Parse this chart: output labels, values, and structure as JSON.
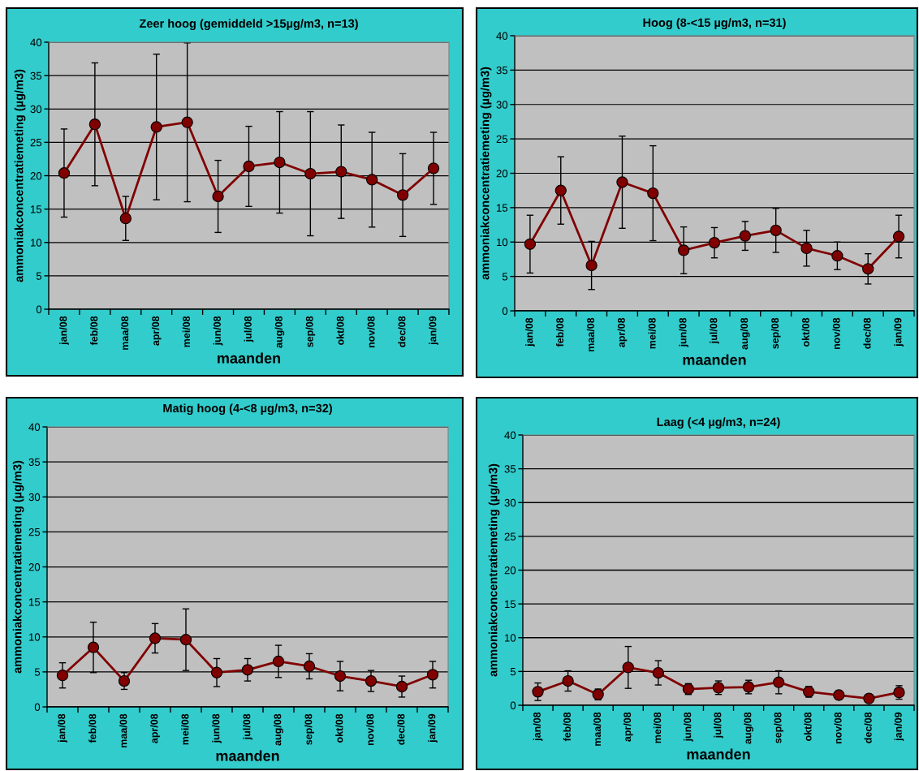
{
  "chart_data": [
    {
      "type": "line",
      "title": "Zeer hoog (gemiddeld >15µg/m3, n=13)",
      "xlabel": "maanden",
      "ylabel": "ammoniakconcentratiemeting (µg/m3)",
      "categories": [
        "jan/08",
        "feb/08",
        "maa/08",
        "apr/08",
        "mei/08",
        "jun/08",
        "jul/08",
        "aug/08",
        "sep/08",
        "okt/08",
        "nov/08",
        "dec/08",
        "jan/09"
      ],
      "series": [
        {
          "color": "#800000",
          "values": [
            20.4,
            27.7,
            13.6,
            27.3,
            28.0,
            16.9,
            21.4,
            22.0,
            20.3,
            20.6,
            19.4,
            17.1,
            21.1
          ],
          "errors": [
            6.6,
            9.2,
            3.3,
            10.9,
            11.9,
            5.4,
            6.0,
            7.6,
            9.3,
            7.0,
            7.1,
            6.2,
            5.4
          ]
        }
      ],
      "ylim": [
        0,
        40
      ],
      "yticks": [
        0,
        5,
        10,
        15,
        20,
        25,
        30,
        35,
        40
      ],
      "grid": "y",
      "marker": "circle",
      "line_style": "solid"
    },
    {
      "type": "line",
      "title": "Hoog (8-<15 µg/m3, n=31)",
      "xlabel": "maanden",
      "ylabel": "ammoniakconcentratiemeting (µg/m3)",
      "categories": [
        "jan/08",
        "feb/08",
        "maa/08",
        "apr/08",
        "mei/08",
        "jun/08",
        "jul/08",
        "aug/08",
        "sep/08",
        "okt/08",
        "nov/08",
        "dec/08",
        "jan/09"
      ],
      "series": [
        {
          "color": "#800000",
          "values": [
            9.7,
            17.5,
            6.6,
            18.7,
            17.1,
            8.8,
            9.9,
            10.9,
            11.7,
            9.1,
            8.0,
            6.1,
            10.8
          ],
          "errors": [
            4.2,
            4.9,
            3.5,
            6.7,
            6.9,
            3.4,
            2.2,
            2.1,
            3.2,
            2.6,
            2.0,
            2.2,
            3.1
          ]
        }
      ],
      "ylim": [
        0,
        40
      ],
      "yticks": [
        0,
        5,
        10,
        15,
        20,
        25,
        30,
        35,
        40
      ],
      "grid": "y",
      "marker": "circle",
      "line_style": "solid"
    },
    {
      "type": "line",
      "title": "Matig hoog (4-<8 µg/m3, n=32)",
      "xlabel": "maanden",
      "ylabel": "ammoniakconcentratiemeting (µg/m3)",
      "categories": [
        "jan/08",
        "feb/08",
        "maa/08",
        "apr/08",
        "mei/08",
        "jun/08",
        "jul/08",
        "aug/08",
        "sep/08",
        "okt/08",
        "nov/08",
        "dec/08",
        "jan/09"
      ],
      "series": [
        {
          "color": "#800000",
          "values": [
            4.5,
            8.5,
            3.7,
            9.8,
            9.6,
            4.9,
            5.3,
            6.5,
            5.8,
            4.4,
            3.7,
            2.9,
            4.6
          ],
          "errors": [
            1.8,
            3.6,
            1.2,
            2.1,
            4.4,
            2.0,
            1.6,
            2.3,
            1.8,
            2.1,
            1.5,
            1.5,
            1.9
          ]
        }
      ],
      "ylim": [
        0,
        40
      ],
      "yticks": [
        0,
        5,
        10,
        15,
        20,
        25,
        30,
        35,
        40
      ],
      "grid": "y",
      "marker": "circle",
      "line_style": "solid"
    },
    {
      "type": "line",
      "title": "Laag (<4 µg/m3, n=24)",
      "xlabel": "maanden",
      "ylabel": "ammoniakconcentratiemeting (µg/m3)",
      "categories": [
        "jan/08",
        "feb/08",
        "maa/08",
        "apr/08",
        "mei/08",
        "jun/08",
        "jul/08",
        "aug/08",
        "sep/08",
        "okt/08",
        "nov/08",
        "dec/08",
        "jan/09"
      ],
      "series": [
        {
          "color": "#800000",
          "values": [
            2.0,
            3.6,
            1.6,
            5.6,
            4.8,
            2.4,
            2.6,
            2.7,
            3.4,
            2.0,
            1.5,
            1.0,
            1.9
          ],
          "errors": [
            1.3,
            1.5,
            0.8,
            3.1,
            1.8,
            0.8,
            1.0,
            1.0,
            1.7,
            0.8,
            0.6,
            null,
            1.0
          ]
        }
      ],
      "ylim": [
        0,
        40
      ],
      "yticks": [
        0,
        5,
        10,
        15,
        20,
        25,
        30,
        35,
        40
      ],
      "grid": "y",
      "marker": "circle",
      "line_style": "solid"
    }
  ]
}
